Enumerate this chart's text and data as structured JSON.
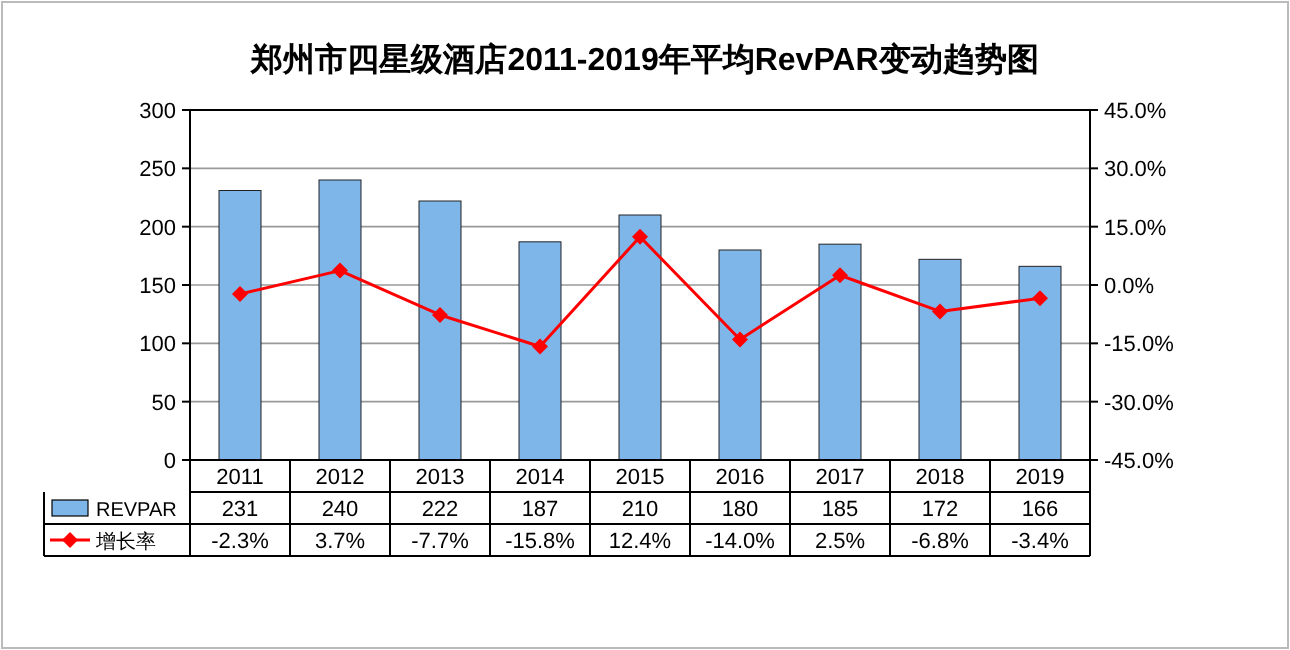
{
  "chart_data": {
    "type": "bar",
    "title": "郑州市四星级酒店2011-2019年平均RevPAR变动趋势图",
    "categories": [
      "2011",
      "2012",
      "2013",
      "2014",
      "2015",
      "2016",
      "2017",
      "2018",
      "2019"
    ],
    "series": [
      {
        "name": "REVPAR",
        "color": "#7fb6ea",
        "values": [
          231,
          240,
          222,
          187,
          210,
          180,
          185,
          172,
          166
        ]
      },
      {
        "name": "增长率",
        "type": "line",
        "axis": "y2",
        "color": "#ff0000",
        "values": [
          -2.3,
          3.7,
          -7.7,
          -15.8,
          12.4,
          -14.0,
          2.5,
          -6.8,
          -3.4
        ],
        "value_labels": [
          "-2.3%",
          "3.7%",
          "-7.7%",
          "-15.8%",
          "12.4%",
          "-14.0%",
          "2.5%",
          "-6.8%",
          "-3.4%"
        ]
      }
    ],
    "ylim": [
      0,
      300
    ],
    "yticks": [
      0,
      50,
      100,
      150,
      200,
      250,
      300
    ],
    "y2lim": [
      -45,
      45
    ],
    "y2ticks": [
      {
        "value": -45,
        "label": "-45.0%"
      },
      {
        "value": -30,
        "label": "-30.0%"
      },
      {
        "value": -15,
        "label": "-15.0%"
      },
      {
        "value": 0,
        "label": "0.0%"
      },
      {
        "value": 15,
        "label": "15.0%"
      },
      {
        "value": 30,
        "label": "30.0%"
      },
      {
        "value": 45,
        "label": "45.0%"
      }
    ],
    "grid": "y",
    "legend": "bottom left",
    "marker": "diamond",
    "line_style": "solid",
    "data_labels": true
  }
}
